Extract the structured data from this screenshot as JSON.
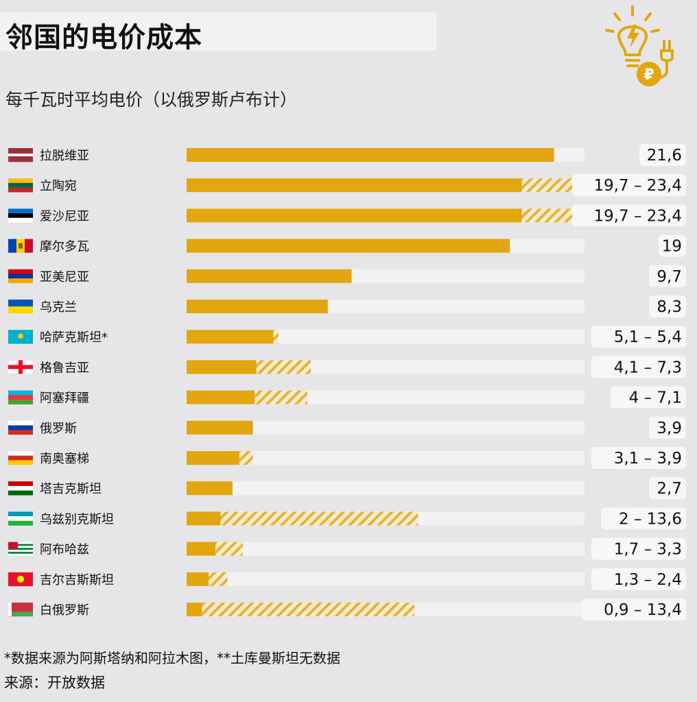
{
  "title": "邻国的电价成本",
  "subtitle": "每千瓦时平均电价（以俄罗斯卢布计）",
  "footnote": "*数据来源为阿斯塔纳和阿拉木图，**土库曼斯坦无数据",
  "source": "来源：开放数据",
  "colors": {
    "bar": "#e2a60e",
    "track": "#f2f2f2",
    "hatch_stripe": "#e5b23a",
    "hatch_bg": "#f7eccd",
    "value_box": "#f7f7f7",
    "background": "#e6e6e8"
  },
  "chart_data": {
    "type": "bar",
    "orientation": "horizontal",
    "xlim": [
      0,
      25
    ],
    "series_note": "solid = minimum price; hatched = range up to maximum price",
    "rows": [
      {
        "country": "拉脱维亚",
        "flag": "latvia-flag",
        "min": 21.6,
        "max": 21.6,
        "label": "21,6"
      },
      {
        "country": "立陶宛",
        "flag": "lithuania-flag",
        "min": 19.7,
        "max": 23.4,
        "label": "19,7 – 23,4"
      },
      {
        "country": "爱沙尼亚",
        "flag": "estonia-flag",
        "min": 19.7,
        "max": 23.4,
        "label": "19,7 – 23,4"
      },
      {
        "country": "摩尔多瓦",
        "flag": "moldova-flag",
        "min": 19,
        "max": 19,
        "label": "19"
      },
      {
        "country": "亚美尼亚",
        "flag": "armenia-flag",
        "min": 9.7,
        "max": 9.7,
        "label": "9,7"
      },
      {
        "country": "乌克兰",
        "flag": "ukraine-flag",
        "min": 8.3,
        "max": 8.3,
        "label": "8,3"
      },
      {
        "country": "哈萨克斯坦*",
        "flag": "kazakhstan-flag",
        "min": 5.1,
        "max": 5.4,
        "label": "5,1 – 5,4"
      },
      {
        "country": "格鲁吉亚",
        "flag": "georgia-flag",
        "min": 4.1,
        "max": 7.3,
        "label": "4,1 – 7,3"
      },
      {
        "country": "阿塞拜疆",
        "flag": "azerbaijan-flag",
        "min": 4,
        "max": 7.1,
        "label": "4 – 7,1"
      },
      {
        "country": "俄罗斯",
        "flag": "russia-flag",
        "min": 3.9,
        "max": 3.9,
        "label": "3,9"
      },
      {
        "country": "南奥塞梯",
        "flag": "south-ossetia-flag",
        "min": 3.1,
        "max": 3.9,
        "label": "3,1 – 3,9"
      },
      {
        "country": "塔吉克斯坦",
        "flag": "tajikistan-flag",
        "min": 2.7,
        "max": 2.7,
        "label": "2,7"
      },
      {
        "country": "乌兹别克斯坦",
        "flag": "uzbekistan-flag",
        "min": 2,
        "max": 13.6,
        "label": "2 – 13,6"
      },
      {
        "country": "阿布哈兹",
        "flag": "abkhazia-flag",
        "min": 1.7,
        "max": 3.3,
        "label": "1,7 – 3,3"
      },
      {
        "country": "吉尔吉斯斯坦",
        "flag": "kyrgyzstan-flag",
        "min": 1.3,
        "max": 2.4,
        "label": "1,3 – 2,4"
      },
      {
        "country": "白俄罗斯",
        "flag": "belarus-flag",
        "min": 0.9,
        "max": 13.4,
        "label": "0,9 – 13,4"
      }
    ]
  }
}
